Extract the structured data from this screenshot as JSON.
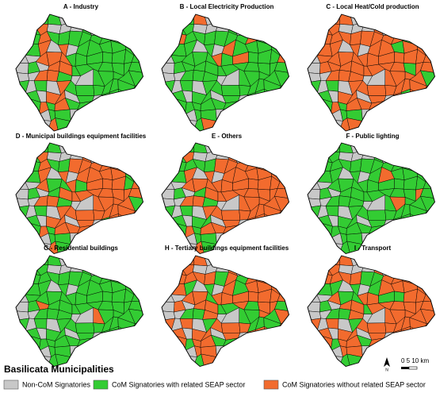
{
  "panels": [
    {
      "title": "A - Industry"
    },
    {
      "title": "B - Local Electricity Production"
    },
    {
      "title": "C - Local Heat/Cold production"
    },
    {
      "title": "D - Municipal buildings equipment facilities"
    },
    {
      "title": "E - Others"
    },
    {
      "title": "F - Public lighting"
    },
    {
      "title": "G - Residential buildings"
    },
    {
      "title": "H - Tertiary buildings equipment facilities"
    },
    {
      "title": "I - Transport"
    }
  ],
  "legend": {
    "title": "Basilicata Municipalities",
    "items": [
      {
        "label": "Non-CoM Signatories",
        "color": "#c8c8c8"
      },
      {
        "label": "CoM Signatories with related SEAP sector",
        "color": "#33cc33"
      },
      {
        "label": "CoM Signatories without related SEAP sector",
        "color": "#f26b2e"
      }
    ]
  },
  "north_arrow": {
    "label": "N"
  },
  "scale_bar": {
    "label": "0 5 10 km"
  }
}
